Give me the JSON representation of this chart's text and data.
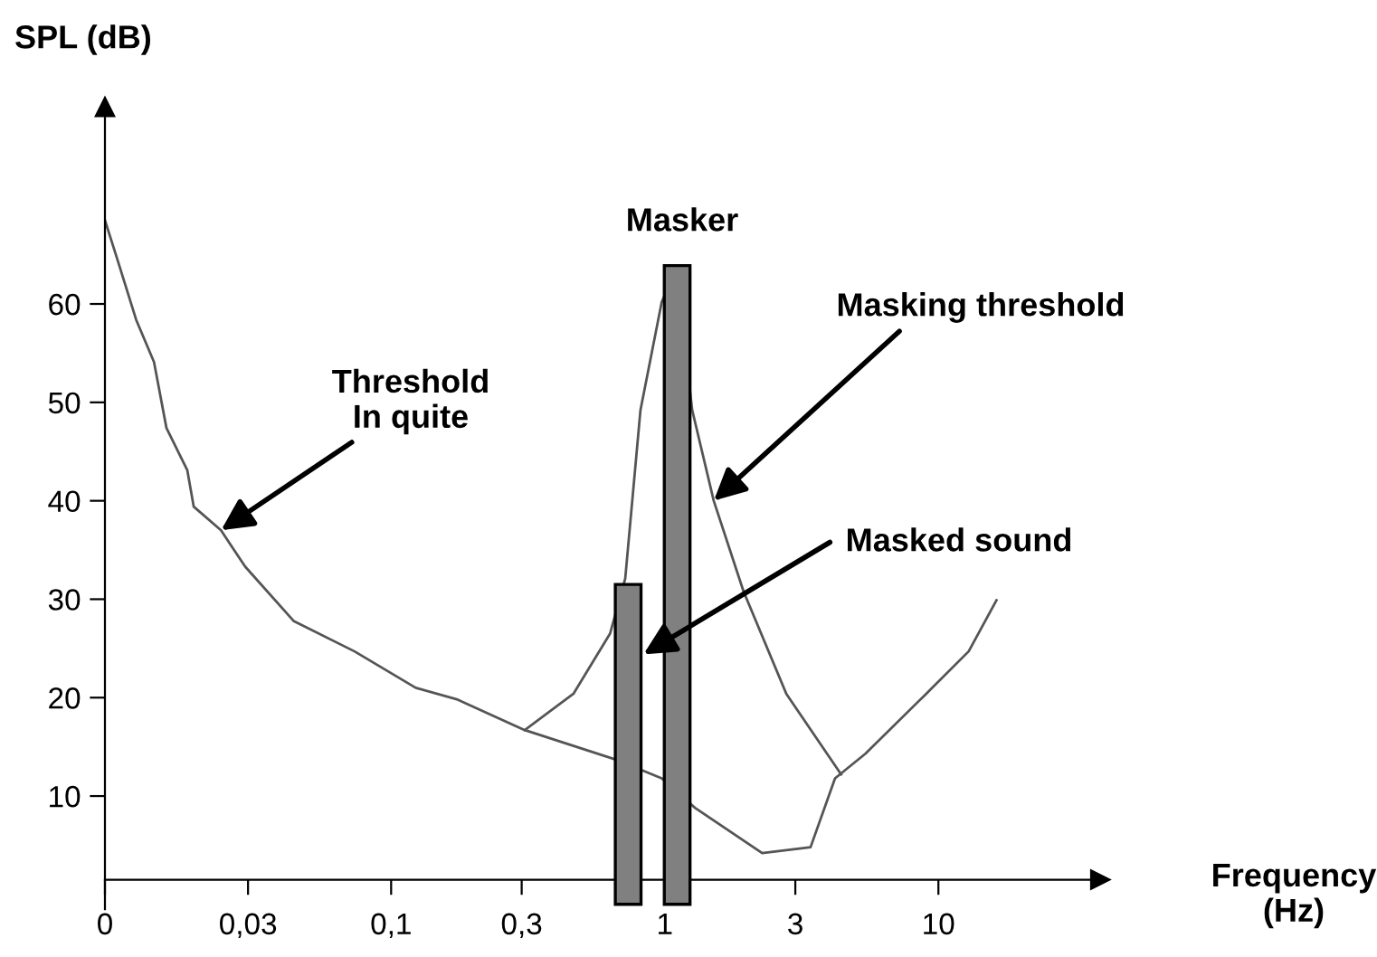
{
  "chart_data": {
    "type": "line",
    "xlabel": "Frequency\n(Hz)",
    "ylabel": "SPL (dB)",
    "log": "x",
    "xlim": [
      0.009,
      39
    ],
    "ylim": [
      -1.5,
      80
    ],
    "xticks": [
      {
        "value": 0.009,
        "label": "0"
      },
      {
        "value": 0.03,
        "label": "0,03"
      },
      {
        "value": 0.1,
        "label": "0,1"
      },
      {
        "value": 0.3,
        "label": "0,3"
      },
      {
        "value": 1,
        "label": "1"
      },
      {
        "value": 3,
        "label": "3"
      },
      {
        "value": 10,
        "label": "10"
      }
    ],
    "yticks": [
      10,
      20,
      30,
      40,
      50,
      60
    ],
    "grid": false,
    "line_style": "solid",
    "marker": "none",
    "series": [
      {
        "color": "#555555",
        "x": [
          0.009,
          0.01,
          0.0117,
          0.0136,
          0.0151,
          0.018,
          0.019,
          0.0239,
          0.0293,
          0.044,
          0.0735,
          0.123,
          0.175,
          0.308,
          0.664,
          0.975,
          1.29,
          2.27,
          3.41,
          4.19,
          5.41,
          9.03,
          12.9,
          16.3
        ],
        "values": [
          68.5,
          64.5,
          58.4,
          54.1,
          47.4,
          43.1,
          39.4,
          37.0,
          33.3,
          27.8,
          24.7,
          21.0,
          19.8,
          16.7,
          13.7,
          11.8,
          8.8,
          4.2,
          4.8,
          11.8,
          14.3,
          20.4,
          24.7,
          29.9
        ]
      },
      {
        "color": "#555555",
        "x": [
          0.308,
          0.464,
          0.631,
          0.717,
          0.815,
          0.975,
          1.1,
          1.26,
          1.51,
          1.94,
          2.78,
          4.41
        ],
        "values": [
          16.7,
          20.4,
          26.5,
          32.1,
          49.2,
          60.2,
          63.5,
          49.2,
          40.0,
          30.8,
          20.4,
          12.2
        ]
      },
      {
        "type": "bar",
        "color": "#808080",
        "x": [
          0.735,
          1.11
        ],
        "base": [
          -1,
          -1
        ],
        "values": [
          32.5,
          64.9
        ]
      }
    ],
    "annotations": [
      {
        "text": "Threshold\nIn quite",
        "x": 0.0239,
        "y": 37.0
      },
      {
        "text": "Masker",
        "x": 1.11,
        "y": 63.9
      },
      {
        "text": "Masking threshold",
        "x": 1.51,
        "y": 40.0
      },
      {
        "text": "Masked sound",
        "x": 0.836,
        "y": 24.4
      }
    ]
  }
}
